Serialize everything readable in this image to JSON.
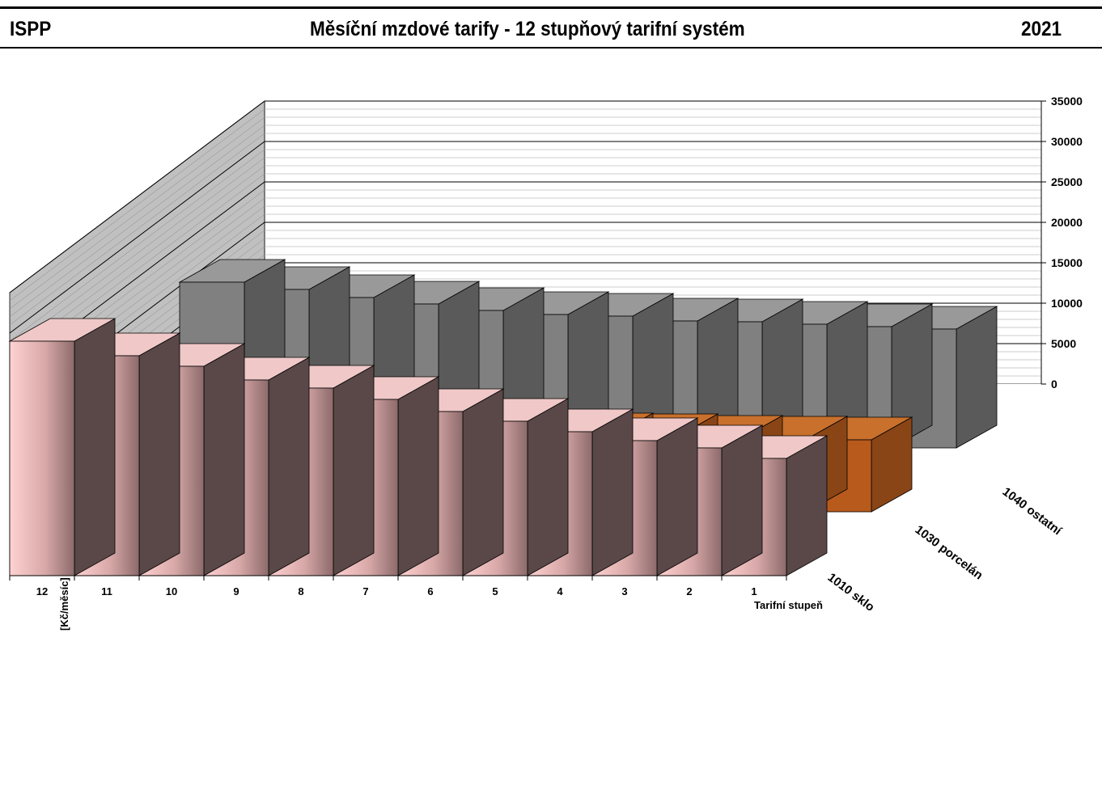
{
  "header": {
    "left": "ISPP",
    "title": "Měsíční mzdové tarify - 12 stupňový tarifní systém",
    "year": "2021"
  },
  "chart_data": {
    "type": "bar",
    "variant": "3d-bar",
    "categories": [
      "12",
      "11",
      "10",
      "9",
      "8",
      "7",
      "6",
      "5",
      "4",
      "3",
      "2",
      "1"
    ],
    "series": [
      {
        "name": "1010 sklo",
        "values": [
          29000,
          27200,
          25900,
          24200,
          23200,
          21800,
          20300,
          19100,
          17800,
          16700,
          15800,
          14500
        ],
        "color": "#f4c4c4"
      },
      {
        "name": "1030 porcelán",
        "values": [
          11800,
          11300,
          10900,
          10500,
          10200,
          9900,
          9700,
          9400,
          9300,
          9100,
          9000,
          8900
        ],
        "color": "#c0601f"
      },
      {
        "name": "1040 ostatní",
        "values": [
          20500,
          19600,
          18600,
          17800,
          17000,
          16500,
          16300,
          15700,
          15600,
          15300,
          15000,
          14700
        ],
        "color": "#808080"
      }
    ],
    "yticks": [
      "0",
      "5000",
      "10000",
      "15000",
      "20000",
      "25000",
      "30000",
      "35000"
    ],
    "ylim": [
      0,
      35000
    ],
    "xlabel": "Tarifní stupeň",
    "ylabel": "[Kč/měsíc]",
    "grid": true
  }
}
